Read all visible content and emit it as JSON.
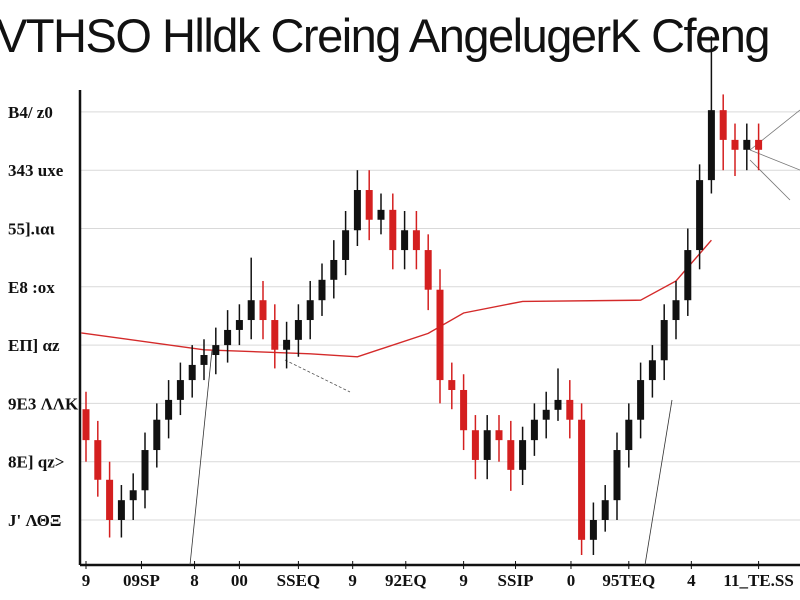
{
  "chart_data": {
    "type": "candlestick",
    "title": "VTHSO Hlldk Creing AngelugerK Cfeng",
    "xlabel": "",
    "ylabel": "",
    "ylim": [
      -0.6,
      8.2
    ],
    "grid": "horizontal",
    "colors": {
      "up": "#111111",
      "down": "#d41f1f",
      "overlay": "#d42a2a",
      "grid": "#d9d9d9"
    },
    "y_ticks": [
      {
        "value": 7,
        "label": "B4/ z0"
      },
      {
        "value": 6,
        "label": "343 uxe"
      },
      {
        "value": 5,
        "label": "55].ιαι"
      },
      {
        "value": 4,
        "label": "E8 :ox"
      },
      {
        "value": 3,
        "label": "EП] αz"
      },
      {
        "value": 2,
        "label": "9E3 ΛΛΚ"
      },
      {
        "value": 1,
        "label": "8E] qz>"
      },
      {
        "value": 0,
        "label": "J' ΛΘΞ"
      }
    ],
    "x_ticks": [
      {
        "index": 0,
        "label": "9"
      },
      {
        "index": 4.7,
        "label": "09SP"
      },
      {
        "index": 9.2,
        "label": "8"
      },
      {
        "index": 13,
        "label": "00"
      },
      {
        "index": 18,
        "label": "SSEQ"
      },
      {
        "index": 22.6,
        "label": "9"
      },
      {
        "index": 27.1,
        "label": "92EQ"
      },
      {
        "index": 32,
        "label": "9"
      },
      {
        "index": 36.4,
        "label": "SSIP"
      },
      {
        "index": 41.1,
        "label": "0"
      },
      {
        "index": 46,
        "label": "95TEQ"
      },
      {
        "index": 51.3,
        "label": "4"
      },
      {
        "index": 57,
        "label": "11_TE.SS"
      }
    ],
    "open": [
      1.9,
      1.37,
      0.69,
      0,
      0.34,
      0.51,
      1.2,
      1.72,
      2.06,
      2.4,
      2.66,
      2.83,
      3.0,
      3.26,
      3.43,
      3.77,
      3.43,
      2.92,
      3.09,
      3.43,
      3.77,
      4.12,
      4.46,
      4.97,
      5.66,
      5.15,
      5.32,
      4.63,
      4.97,
      4.63,
      3.95,
      2.4,
      2.23,
      1.54,
      1.03,
      1.54,
      1.37,
      0.86,
      1.37,
      1.72,
      1.89,
      2.06,
      1.72,
      -0.34,
      0,
      0.34,
      1.2,
      1.72,
      2.4,
      2.74,
      3.43,
      3.77,
      4.63,
      5.83,
      7.03,
      6.52,
      6.35,
      6.52
    ],
    "high": [
      2.2,
      1.7,
      1.0,
      0.6,
      0.8,
      1.5,
      2.0,
      2.4,
      2.7,
      3.0,
      3.1,
      3.3,
      3.6,
      3.7,
      4.5,
      4.1,
      3.7,
      3.4,
      3.7,
      4.1,
      4.4,
      4.8,
      5.3,
      6.0,
      6.0,
      5.6,
      5.6,
      5.3,
      5.3,
      4.9,
      4.3,
      2.7,
      2.5,
      1.8,
      1.8,
      1.8,
      1.7,
      1.6,
      2.0,
      2.2,
      2.6,
      2.4,
      2.0,
      0.3,
      0.6,
      1.5,
      2.0,
      2.7,
      3.0,
      3.7,
      4.1,
      5.0,
      6.1,
      8.3,
      7.3,
      6.8,
      6.8,
      6.8
    ],
    "low": [
      1.0,
      0.4,
      -0.3,
      -0.3,
      0.0,
      0.2,
      0.9,
      1.4,
      1.8,
      2.1,
      2.4,
      2.5,
      2.7,
      3.0,
      3.1,
      3.1,
      2.6,
      2.6,
      2.8,
      3.1,
      3.5,
      3.8,
      4.2,
      4.7,
      4.8,
      4.9,
      4.3,
      4.3,
      4.3,
      3.6,
      2.0,
      1.9,
      1.2,
      0.7,
      0.7,
      1.0,
      0.5,
      0.6,
      1.1,
      1.4,
      1.7,
      1.4,
      -0.6,
      -0.6,
      -0.2,
      0.0,
      0.9,
      1.4,
      2.1,
      2.4,
      3.1,
      3.5,
      4.3,
      5.6,
      6.0,
      5.9,
      6.0,
      6.0
    ],
    "close": [
      1.37,
      0.69,
      0,
      0.34,
      0.51,
      1.2,
      1.72,
      2.06,
      2.4,
      2.66,
      2.83,
      3.0,
      3.26,
      3.43,
      3.77,
      3.43,
      2.92,
      3.09,
      3.43,
      3.77,
      4.12,
      4.46,
      4.97,
      5.66,
      5.15,
      5.32,
      4.63,
      4.97,
      4.63,
      3.95,
      2.4,
      2.23,
      1.54,
      1.03,
      1.54,
      1.37,
      0.86,
      1.37,
      1.72,
      1.89,
      2.06,
      1.72,
      -0.34,
      0,
      0.34,
      1.2,
      1.72,
      2.4,
      2.74,
      3.43,
      3.77,
      4.63,
      5.83,
      7.03,
      6.52,
      6.35,
      6.52,
      6.35
    ],
    "overlay_line": {
      "x": [
        -0.4,
        10,
        19,
        23,
        29,
        32,
        37,
        47,
        50,
        53
      ],
      "y": [
        3.21,
        2.92,
        2.85,
        2.8,
        3.2,
        3.55,
        3.75,
        3.77,
        4.1,
        4.8
      ]
    }
  }
}
